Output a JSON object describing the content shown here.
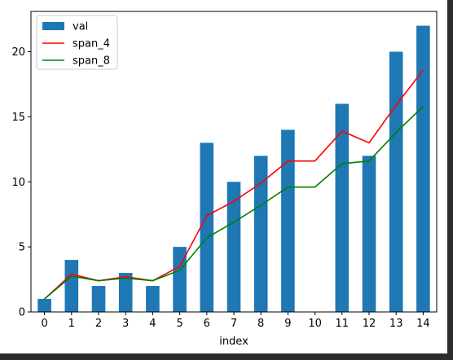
{
  "chart_data": {
    "type": "bar",
    "categories": [
      "0",
      "1",
      "2",
      "3",
      "4",
      "5",
      "6",
      "7",
      "8",
      "9",
      "10",
      "11",
      "12",
      "13",
      "14"
    ],
    "series": [
      {
        "name": "val",
        "kind": "bar",
        "color": "#1f77b4",
        "values": [
          1,
          4,
          2,
          3,
          2,
          5,
          13,
          10,
          12,
          14,
          null,
          16,
          12,
          20,
          22
        ]
      },
      {
        "name": "span_4",
        "kind": "line",
        "color": "#ff0000",
        "values": [
          1,
          2.9,
          2.4,
          2.7,
          2.4,
          3.5,
          7.4,
          8.5,
          9.9,
          11.6,
          11.6,
          13.9,
          13.0,
          15.9,
          18.6
        ]
      },
      {
        "name": "span_8",
        "kind": "line",
        "color": "#008000",
        "values": [
          1,
          2.75,
          2.4,
          2.6,
          2.4,
          3.2,
          5.7,
          6.9,
          8.2,
          9.6,
          9.6,
          11.4,
          11.6,
          13.8,
          15.8
        ]
      }
    ],
    "xlabel": "index",
    "ylabel": "",
    "ylim": [
      0,
      23.1
    ],
    "yticks": [
      0,
      5,
      10,
      15,
      20
    ],
    "grid": false,
    "legend_position": "top-left"
  }
}
